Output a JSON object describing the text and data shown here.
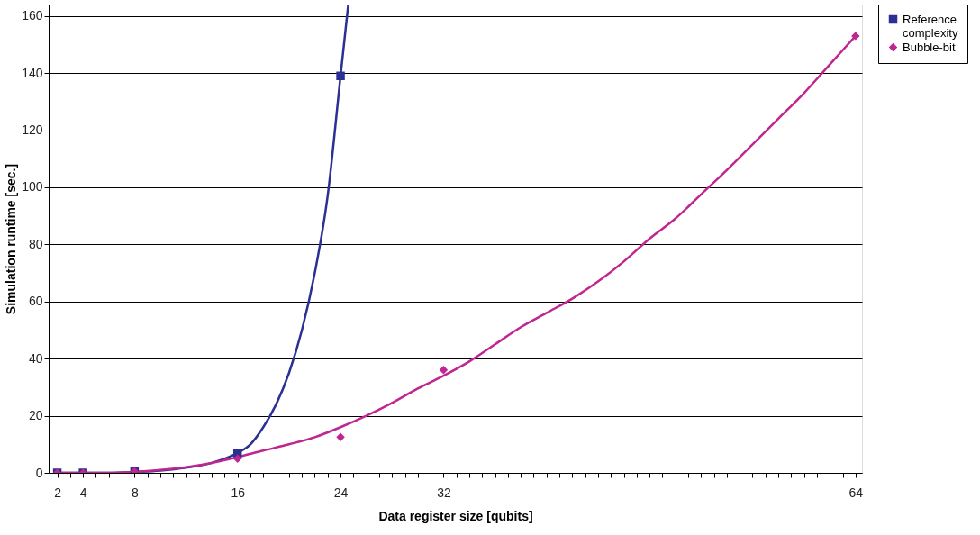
{
  "chart_data": {
    "type": "line",
    "xlabel": "Data register size [qubits]",
    "ylabel": "Simulation runtime [sec.]",
    "xlim": [
      1.33,
      64.5
    ],
    "ylim": [
      0,
      164
    ],
    "xticks": [
      2,
      {
        "value": 3,
        "label": null
      },
      4,
      {
        "value": 5,
        "label": null
      },
      {
        "value": 6,
        "label": null
      },
      {
        "value": 7,
        "label": null
      },
      8,
      {
        "value": 9,
        "label": null
      },
      {
        "value": 10,
        "label": null
      },
      {
        "value": 11,
        "label": null
      },
      {
        "value": 12,
        "label": null
      },
      {
        "value": 13,
        "label": null
      },
      {
        "value": 14,
        "label": null
      },
      {
        "value": 15,
        "label": null
      },
      16,
      {
        "value": 17,
        "label": null
      },
      {
        "value": 18,
        "label": null
      },
      {
        "value": 19,
        "label": null
      },
      {
        "value": 20,
        "label": null
      },
      {
        "value": 21,
        "label": null
      },
      {
        "value": 22,
        "label": null
      },
      {
        "value": 23,
        "label": null
      },
      24,
      {
        "value": 25,
        "label": null
      },
      {
        "value": 26,
        "label": null
      },
      {
        "value": 27,
        "label": null
      },
      {
        "value": 28,
        "label": null
      },
      {
        "value": 29,
        "label": null
      },
      {
        "value": 30,
        "label": null
      },
      {
        "value": 31,
        "label": null
      },
      32,
      {
        "value": 33,
        "label": null
      },
      {
        "value": 34,
        "label": null
      },
      {
        "value": 35,
        "label": null
      },
      {
        "value": 36,
        "label": null
      },
      {
        "value": 37,
        "label": null
      },
      {
        "value": 38,
        "label": null
      },
      {
        "value": 39,
        "label": null
      },
      {
        "value": 40,
        "label": null
      },
      {
        "value": 41,
        "label": null
      },
      {
        "value": 42,
        "label": null
      },
      {
        "value": 43,
        "label": null
      },
      {
        "value": 44,
        "label": null
      },
      {
        "value": 45,
        "label": null
      },
      {
        "value": 46,
        "label": null
      },
      {
        "value": 47,
        "label": null
      },
      {
        "value": 48,
        "label": null
      },
      {
        "value": 49,
        "label": null
      },
      {
        "value": 50,
        "label": null
      },
      {
        "value": 51,
        "label": null
      },
      {
        "value": 52,
        "label": null
      },
      {
        "value": 53,
        "label": null
      },
      {
        "value": 54,
        "label": null
      },
      {
        "value": 55,
        "label": null
      },
      {
        "value": 56,
        "label": null
      },
      {
        "value": 57,
        "label": null
      },
      {
        "value": 58,
        "label": null
      },
      {
        "value": 59,
        "label": null
      },
      {
        "value": 60,
        "label": null
      },
      {
        "value": 61,
        "label": null
      },
      {
        "value": 62,
        "label": null
      },
      {
        "value": 63,
        "label": null
      },
      64
    ],
    "yticks": [
      0,
      20,
      40,
      60,
      80,
      100,
      120,
      140,
      160
    ],
    "grid": "y",
    "legend": "right",
    "series": [
      {
        "color": "#2b3092",
        "line_style": "solid",
        "x": [
          2,
          4,
          6,
          8,
          10,
          12,
          14,
          16,
          17,
          18,
          19,
          20,
          21,
          22,
          23,
          24,
          24.6
        ],
        "values": [
          0,
          0,
          0,
          0.3,
          0.8,
          1.8,
          3.5,
          7,
          10,
          16,
          24,
          35,
          50,
          70,
          97,
          139,
          164
        ]
      },
      {
        "color": "#c0268f",
        "line_style": "solid",
        "x": [
          2,
          4,
          6,
          8,
          10,
          12,
          14,
          16,
          18,
          20,
          22,
          24,
          26,
          28,
          30,
          32,
          34,
          36,
          38,
          40,
          42,
          44,
          46,
          48,
          50,
          52,
          54,
          56,
          58,
          60,
          62,
          64
        ],
        "values": [
          0,
          0,
          0,
          0.3,
          1,
          2,
          3.5,
          5.5,
          7.8,
          10,
          12.5,
          16,
          20,
          24.5,
          29.5,
          34,
          39,
          45,
          51,
          56,
          61,
          67,
          74,
          82,
          89,
          97.5,
          106,
          115,
          124,
          133,
          143,
          153
        ]
      },
      {
        "type": "scatter",
        "name": "Reference complexity",
        "color": "#2b3092",
        "marker": "square",
        "x": [
          2,
          4,
          8,
          16,
          24
        ],
        "values": [
          0,
          0,
          0.5,
          7,
          139
        ]
      },
      {
        "type": "scatter",
        "name": "Bubble-bit",
        "color": "#c0268f",
        "marker": "diamond",
        "x": [
          2,
          4,
          8,
          16,
          24,
          32,
          64
        ],
        "values": [
          0,
          0,
          0.5,
          5,
          12.5,
          36,
          153
        ]
      }
    ]
  }
}
